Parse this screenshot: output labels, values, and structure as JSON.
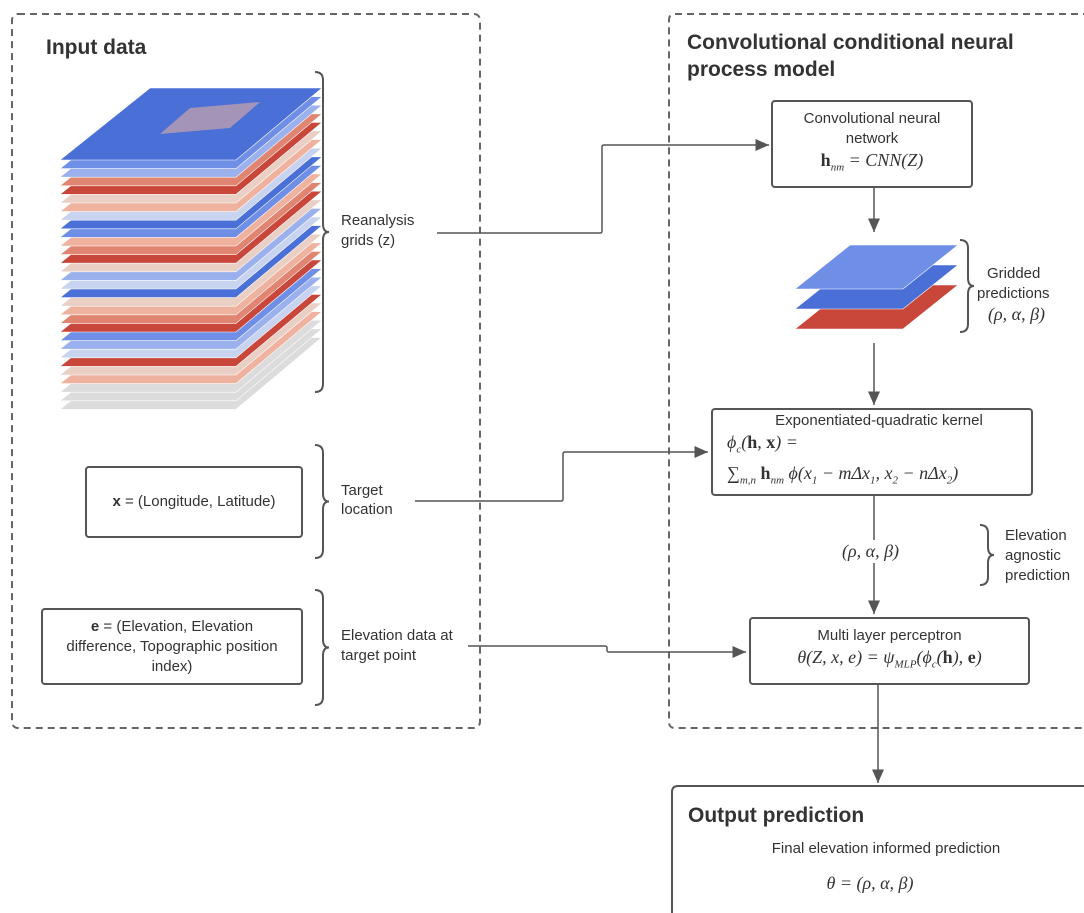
{
  "input_data": {
    "title": "Input data",
    "reanalysis_label": [
      "Reanalysis",
      "grids (z)"
    ],
    "target_box": {
      "symbol": "x",
      "text": "= (Longitude, Latitude)"
    },
    "target_label": [
      "Target",
      "location"
    ],
    "elevation_box": {
      "symbol": "e",
      "lines": [
        "= (Elevation, Elevation",
        "difference, Topographic position",
        "index)"
      ]
    },
    "elevation_label": [
      "Elevation data at",
      "target point"
    ]
  },
  "model": {
    "title": [
      "Convolutional conditional neural",
      "process model"
    ],
    "cnn": {
      "title": [
        "Convolutional neural",
        "network"
      ],
      "formula": [
        {
          "b": "h"
        },
        {
          "sub": "nm"
        },
        " = CNN(Z)"
      ]
    },
    "gridded_label": [
      "Gridded",
      "predictions"
    ],
    "gridded_params": "(ρ, α, β)",
    "kernel": {
      "title": "Exponentiated-quadratic kernel",
      "formula": [
        [
          "ϕ",
          {
            "sub": "c"
          },
          "(",
          {
            "b": "h"
          },
          ", ",
          {
            "b": "x"
          },
          ") ="
        ],
        [
          "∑",
          {
            "sub": "m,n"
          },
          " ",
          {
            "b": "h"
          },
          {
            "sub": "nm"
          },
          " ϕ(x",
          {
            "sub": "1"
          },
          " − mΔx",
          {
            "sub": "1"
          },
          ", x",
          {
            "sub": "2"
          },
          " − nΔx",
          {
            "sub": "2"
          },
          ")"
        ]
      ]
    },
    "params_label": "(ρ, α, β)",
    "agnostic_label": [
      "Elevation",
      "agnostic",
      "prediction"
    ],
    "mlp": {
      "title": "Multi layer perceptron",
      "formula": [
        "θ(Z, x, e) = ψ",
        {
          "sub": "MLP"
        },
        "(ϕ",
        {
          "sub": "c"
        },
        "(",
        {
          "b": "h"
        },
        "), ",
        {
          "b": "e"
        },
        ")"
      ]
    }
  },
  "output": {
    "title": "Output prediction",
    "text": "Final elevation informed prediction",
    "formula": "θ = (ρ, α, β)"
  }
}
